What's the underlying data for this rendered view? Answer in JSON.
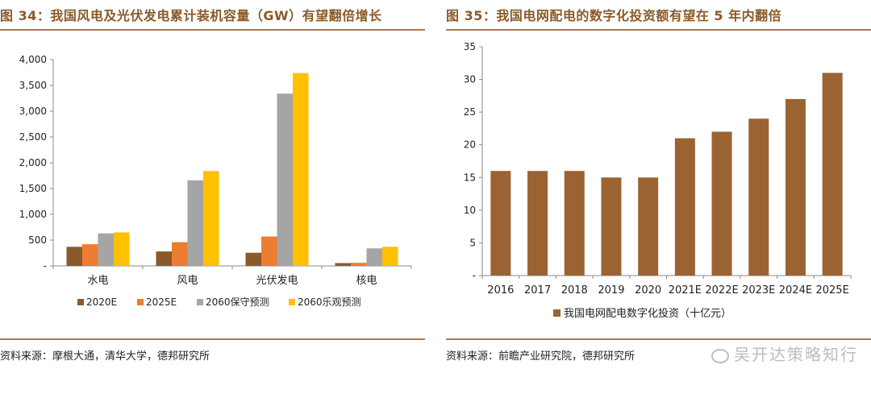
{
  "left": {
    "title": "图 34：我国风电及光伏发电累计装机容量（GW）有望翻倍增长",
    "source": "资料来源：摩根大通，清华大学，德邦研究所"
  },
  "right": {
    "title": "图 35：我国电网配电的数字化投资额有望在 5 年内翻倍",
    "source": "资料来源：前瞻产业研究院，德邦研究所"
  },
  "watermark": "吴开达策略知行",
  "colors": {
    "title": "#8a5a2a",
    "rule": "#b07a4a"
  },
  "chart_data": [
    {
      "type": "bar",
      "categories": [
        "水电",
        "风电",
        "光伏发电",
        "核电"
      ],
      "series": [
        {
          "name": "2020E",
          "color": "#8b5a2b",
          "values": [
            370,
            280,
            255,
            55
          ]
        },
        {
          "name": "2025E",
          "color": "#ed7d31",
          "values": [
            420,
            460,
            570,
            60
          ]
        },
        {
          "name": "2060保守预测",
          "color": "#a5a5a5",
          "values": [
            630,
            1660,
            3340,
            340
          ]
        },
        {
          "name": "2060乐观预测",
          "color": "#ffc000",
          "values": [
            650,
            1840,
            3740,
            370
          ]
        }
      ],
      "ylim": [
        0,
        4000
      ],
      "yticks": [
        0,
        500,
        1000,
        1500,
        2000,
        2500,
        3000,
        3500,
        4000
      ],
      "ytick_labels": [
        "-",
        "500",
        "1,000",
        "1,500",
        "2,000",
        "2,500",
        "3,000",
        "3,500",
        "4,000"
      ],
      "legend_position": "bottom",
      "grid": false
    },
    {
      "type": "bar",
      "categories": [
        "2016",
        "2017",
        "2018",
        "2019",
        "2020",
        "2021E",
        "2022E",
        "2023E",
        "2024E",
        "2025E"
      ],
      "series": [
        {
          "name": "我国电网配电数字化投资（十亿元）",
          "color": "#9b6332",
          "values": [
            16,
            16,
            16,
            15,
            15,
            21,
            22,
            24,
            27,
            31
          ]
        }
      ],
      "ylim": [
        0,
        35
      ],
      "yticks": [
        0,
        5,
        10,
        15,
        20,
        25,
        30,
        35
      ],
      "ytick_labels": [
        "-",
        "5",
        "10",
        "15",
        "20",
        "25",
        "30",
        "35"
      ],
      "legend_position": "bottom",
      "grid": false
    }
  ]
}
